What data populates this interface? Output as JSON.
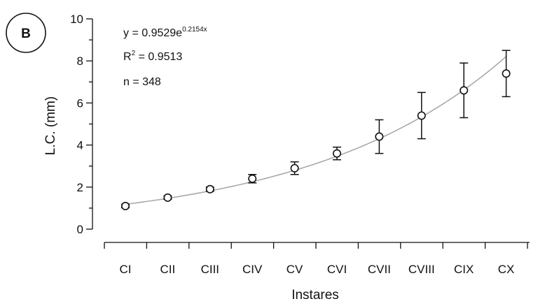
{
  "panel_label": "B",
  "annotations": {
    "equation_base": "y = 0.9529e",
    "equation_exponent": "0.2154x",
    "r2_base": "R",
    "r2_exponent": "2",
    "r2_value": " = 0.9513",
    "n_text": "n = 348"
  },
  "chart_data": {
    "type": "scatter",
    "title": "",
    "xlabel": "Instares",
    "ylabel": "L.C. (mm)",
    "categories": [
      "CI",
      "CII",
      "CIII",
      "CIV",
      "CV",
      "CVI",
      "CVII",
      "CVIII",
      "CIX",
      "CX"
    ],
    "ylim": [
      0,
      10
    ],
    "yticks": [
      0,
      2,
      4,
      6,
      8,
      10
    ],
    "grid": false,
    "series": [
      {
        "values": [
          1.1,
          1.5,
          1.9,
          2.4,
          2.9,
          3.6,
          4.4,
          5.4,
          6.6,
          7.4
        ],
        "error": [
          0.08,
          0.08,
          0.1,
          0.2,
          0.3,
          0.3,
          0.8,
          1.1,
          1.3,
          1.1
        ]
      }
    ],
    "fit": {
      "type": "exponential",
      "a": 0.9529,
      "b": 0.2154
    },
    "colors": {
      "axis": "#111111",
      "fit_line": "#a9a9a9",
      "marker_fill": "#ffffff",
      "marker_stroke": "#111111"
    }
  }
}
